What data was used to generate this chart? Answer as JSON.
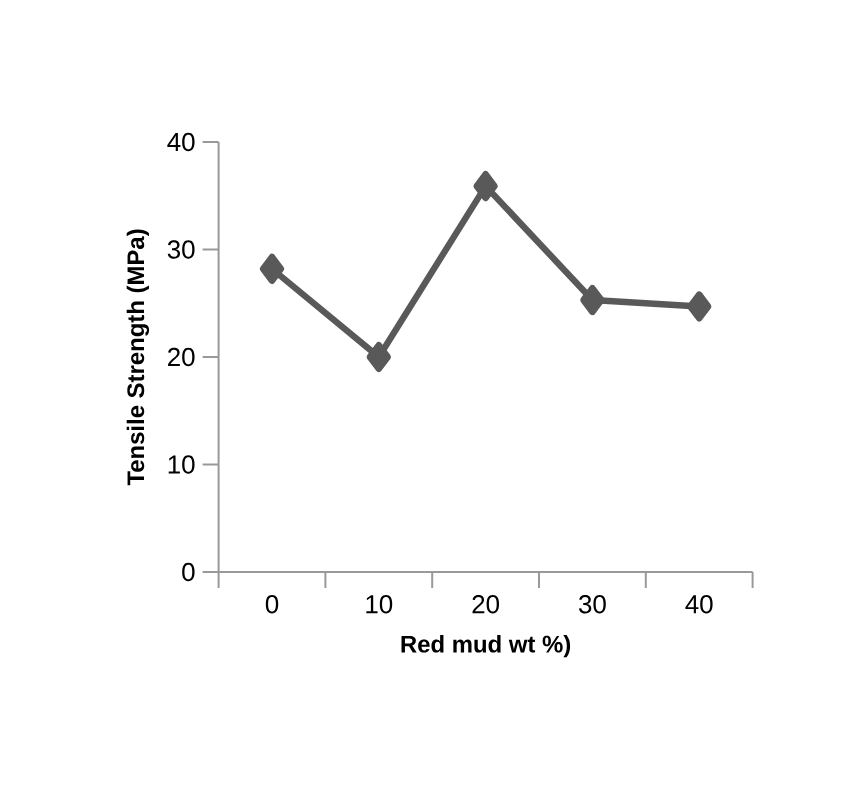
{
  "chart_data": {
    "type": "line",
    "xlabel": "Red mud wt %)",
    "ylabel": "Tensile Strength (MPa)",
    "categories": [
      "0",
      "10",
      "20",
      "30",
      "40"
    ],
    "series": [
      {
        "color": "#595959",
        "values": [
          28.2,
          20.0,
          35.9,
          25.3,
          24.7
        ]
      }
    ],
    "ylim": [
      0,
      40
    ],
    "yticks": [
      0,
      10,
      20,
      30,
      40
    ],
    "marker": "diamond",
    "line_style": "solid"
  }
}
